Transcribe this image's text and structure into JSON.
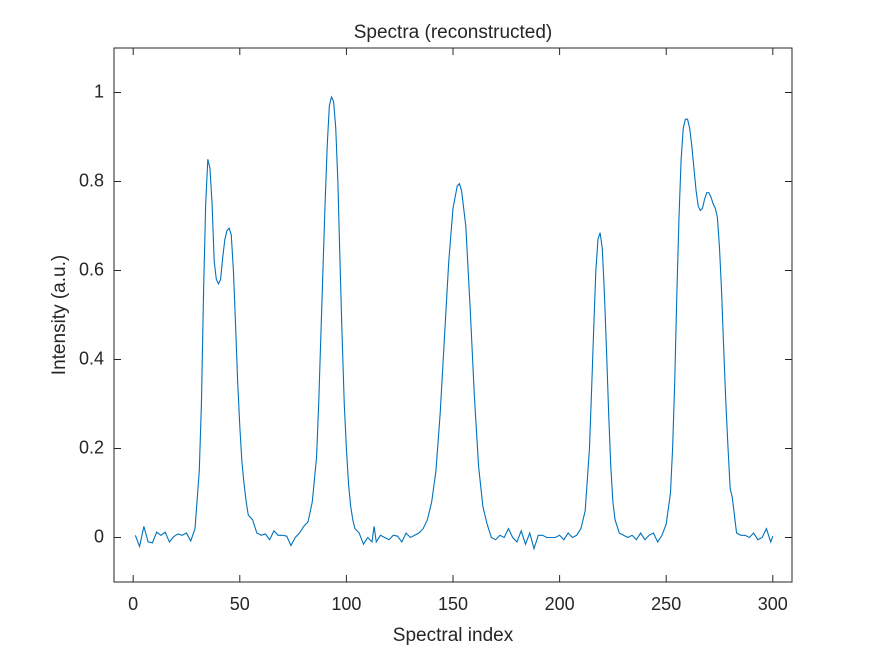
{
  "chart_data": {
    "type": "line",
    "title": "Spectra (reconstructed)",
    "xlabel": "Spectral index",
    "ylabel": "Intensity (a.u.)",
    "x": [
      1,
      3,
      5,
      7,
      9,
      11,
      13,
      15,
      17,
      19,
      21,
      23,
      25,
      27,
      29,
      31,
      32,
      33,
      34,
      35,
      36,
      37,
      38,
      39,
      40,
      41,
      42,
      43,
      44,
      45,
      46,
      47,
      48,
      49,
      50,
      51,
      52,
      53,
      54,
      56,
      58,
      60,
      62,
      64,
      66,
      68,
      70,
      72,
      74,
      76,
      78,
      80,
      82,
      84,
      86,
      87,
      88,
      89,
      90,
      91,
      92,
      93,
      94,
      95,
      96,
      97,
      98,
      99,
      100,
      101,
      102,
      103,
      104,
      106,
      108,
      110,
      112,
      113,
      114,
      116,
      118,
      120,
      122,
      124,
      126,
      128,
      130,
      132,
      134,
      136,
      138,
      140,
      142,
      144,
      146,
      148,
      150,
      152,
      153,
      154,
      156,
      158,
      160,
      162,
      164,
      166,
      168,
      170,
      172,
      174,
      176,
      178,
      180,
      182,
      184,
      186,
      188,
      190,
      192,
      194,
      196,
      198,
      200,
      202,
      204,
      206,
      208,
      210,
      212,
      214,
      215,
      216,
      217,
      218,
      219,
      220,
      221,
      222,
      223,
      224,
      225,
      226,
      228,
      230,
      232,
      234,
      236,
      238,
      240,
      242,
      244,
      246,
      248,
      250,
      252,
      253,
      254,
      255,
      256,
      257,
      258,
      259,
      260,
      261,
      262,
      263,
      264,
      265,
      266,
      267,
      268,
      269,
      270,
      271,
      272,
      273,
      274,
      275,
      276,
      277,
      278,
      279,
      280,
      281,
      282,
      283,
      285,
      287,
      289,
      291,
      293,
      295,
      297,
      299,
      300
    ],
    "values": [
      0.005,
      -0.02,
      0.025,
      -0.01,
      -0.012,
      0.012,
      0.005,
      0.012,
      -0.01,
      0.002,
      0.008,
      0.005,
      0.01,
      -0.008,
      0.02,
      0.15,
      0.3,
      0.55,
      0.75,
      0.85,
      0.83,
      0.75,
      0.62,
      0.58,
      0.57,
      0.58,
      0.63,
      0.67,
      0.69,
      0.695,
      0.68,
      0.6,
      0.48,
      0.35,
      0.25,
      0.17,
      0.12,
      0.08,
      0.05,
      0.04,
      0.01,
      0.005,
      0.008,
      -0.005,
      0.015,
      0.005,
      0.005,
      0.003,
      -0.018,
      0,
      0.01,
      0.025,
      0.035,
      0.08,
      0.18,
      0.3,
      0.45,
      0.6,
      0.75,
      0.88,
      0.97,
      0.99,
      0.98,
      0.92,
      0.8,
      0.62,
      0.45,
      0.3,
      0.2,
      0.12,
      0.07,
      0.04,
      0.02,
      0.01,
      -0.015,
      0,
      -0.01,
      0.025,
      -0.01,
      0.005,
      0,
      -0.005,
      0.005,
      0.003,
      -0.01,
      0.01,
      0,
      0.005,
      0.01,
      0.02,
      0.04,
      0.08,
      0.15,
      0.28,
      0.45,
      0.62,
      0.74,
      0.79,
      0.795,
      0.78,
      0.7,
      0.52,
      0.32,
      0.16,
      0.07,
      0.03,
      0,
      -0.005,
      0.005,
      0,
      0.02,
      0,
      -0.01,
      0.015,
      -0.015,
      0.01,
      -0.025,
      0.005,
      0.005,
      0,
      0,
      0,
      0.005,
      -0.005,
      0.01,
      0,
      0.005,
      0.02,
      0.06,
      0.2,
      0.33,
      0.47,
      0.6,
      0.67,
      0.685,
      0.65,
      0.55,
      0.42,
      0.28,
      0.16,
      0.08,
      0.04,
      0.01,
      0.005,
      0,
      0.005,
      -0.005,
      0.01,
      -0.005,
      0.005,
      0.01,
      -0.01,
      0.005,
      0.03,
      0.1,
      0.2,
      0.35,
      0.55,
      0.72,
      0.85,
      0.92,
      0.94,
      0.94,
      0.92,
      0.88,
      0.83,
      0.78,
      0.745,
      0.735,
      0.74,
      0.76,
      0.775,
      0.775,
      0.765,
      0.75,
      0.74,
      0.72,
      0.65,
      0.55,
      0.42,
      0.3,
      0.2,
      0.11,
      0.09,
      0.05,
      0.01,
      0.005,
      0.005,
      0,
      0.01,
      -0.005,
      0,
      0.02,
      -0.01,
      0.003
    ],
    "color": "#0072bd",
    "xlim": [
      -9,
      309
    ],
    "xticks": [
      0,
      50,
      100,
      150,
      200,
      250,
      300
    ],
    "ylim": [
      -0.1,
      1.1
    ],
    "yticks": [
      0,
      0.2,
      0.4,
      0.6,
      0.8,
      1
    ]
  }
}
